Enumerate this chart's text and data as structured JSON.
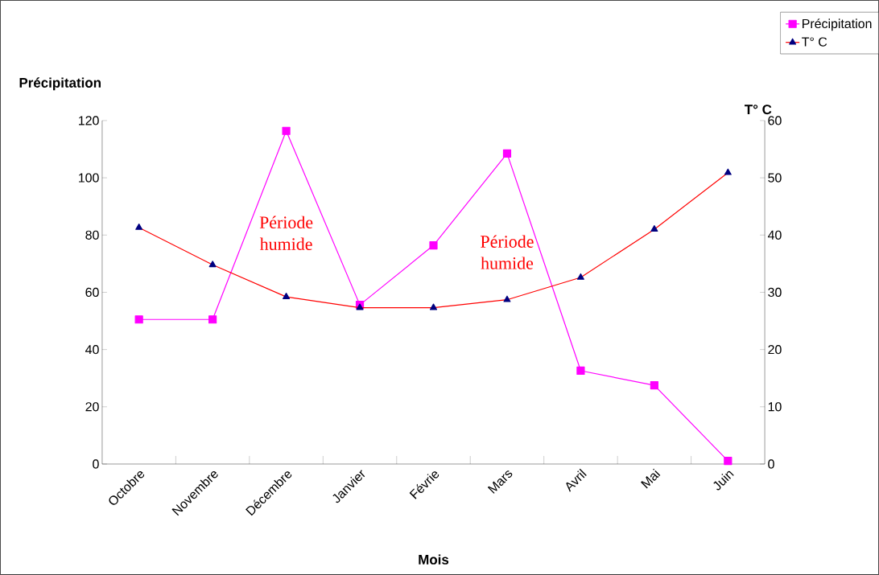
{
  "chart_data": {
    "type": "line",
    "xlabel": "Mois",
    "ylabel": "Précipitation",
    "y2label": "T° C",
    "categories": [
      "Octobre",
      "Novembre",
      "Décembre",
      "Janvier",
      "Févrie",
      "Mars",
      "Avril",
      "Mai",
      "Juin"
    ],
    "series": [
      {
        "name": "Précipitation",
        "color": "#ff00ff",
        "marker": "square",
        "values": [
          50.5,
          50.5,
          116.4,
          55.6,
          76.4,
          108.5,
          32.6,
          27.5,
          1.1
        ]
      },
      {
        "name": "T° C",
        "color": "#ff0000",
        "marker": "triangle",
        "axis": "y2",
        "values": [
          41.3,
          34.8,
          29.2,
          27.3,
          27.3,
          28.7,
          32.6,
          41.0,
          50.9
        ]
      }
    ],
    "ylim": [
      0,
      120
    ],
    "yticks": [
      0,
      20,
      40,
      60,
      80,
      100,
      120
    ],
    "y2lim": [
      0,
      60
    ],
    "y2ticks": [
      0,
      10,
      20,
      30,
      40,
      50,
      60
    ],
    "annotations": [
      "Période humide",
      "Période humide"
    ],
    "grid": false,
    "legend": "top right"
  }
}
